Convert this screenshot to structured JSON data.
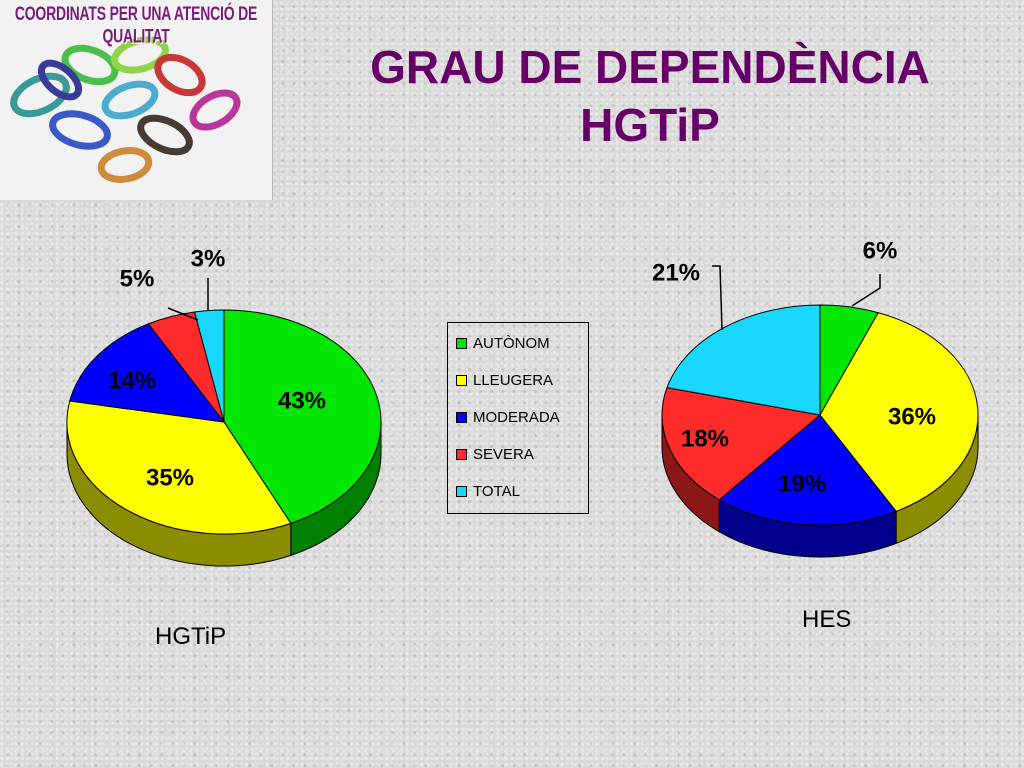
{
  "logo": {
    "text": "COORDINATS PER UNA ATENCIÓ DE QUALITAT"
  },
  "title": {
    "line1": "GRAU DE DEPENDÈNCIA",
    "line2": "HGTiP"
  },
  "legend": {
    "items": [
      {
        "label": "AUTÒNOM",
        "color": "#00e600"
      },
      {
        "label": "LLEUGERA",
        "color": "#ffff00"
      },
      {
        "label": "MODERADA",
        "color": "#0000ff"
      },
      {
        "label": "SEVERA",
        "color": "#ff2a2a"
      },
      {
        "label": "TOTAL",
        "color": "#19d7ff"
      }
    ]
  },
  "chart_data": [
    {
      "type": "pie",
      "title": "HGTiP",
      "categories": [
        "AUTÒNOM",
        "LLEUGERA",
        "MODERADA",
        "SEVERA",
        "TOTAL"
      ],
      "values": [
        43,
        35,
        14,
        5,
        3
      ],
      "labels": [
        "43%",
        "35%",
        "14%",
        "5%",
        "3%"
      ],
      "legend": "center"
    },
    {
      "type": "pie",
      "title": "HES",
      "categories": [
        "AUTÒNOM",
        "LLEUGERA",
        "MODERADA",
        "SEVERA",
        "TOTAL"
      ],
      "values": [
        6,
        36,
        19,
        18,
        21
      ],
      "labels": [
        "6%",
        "36%",
        "19%",
        "18%",
        "21%"
      ],
      "legend": "center"
    }
  ]
}
